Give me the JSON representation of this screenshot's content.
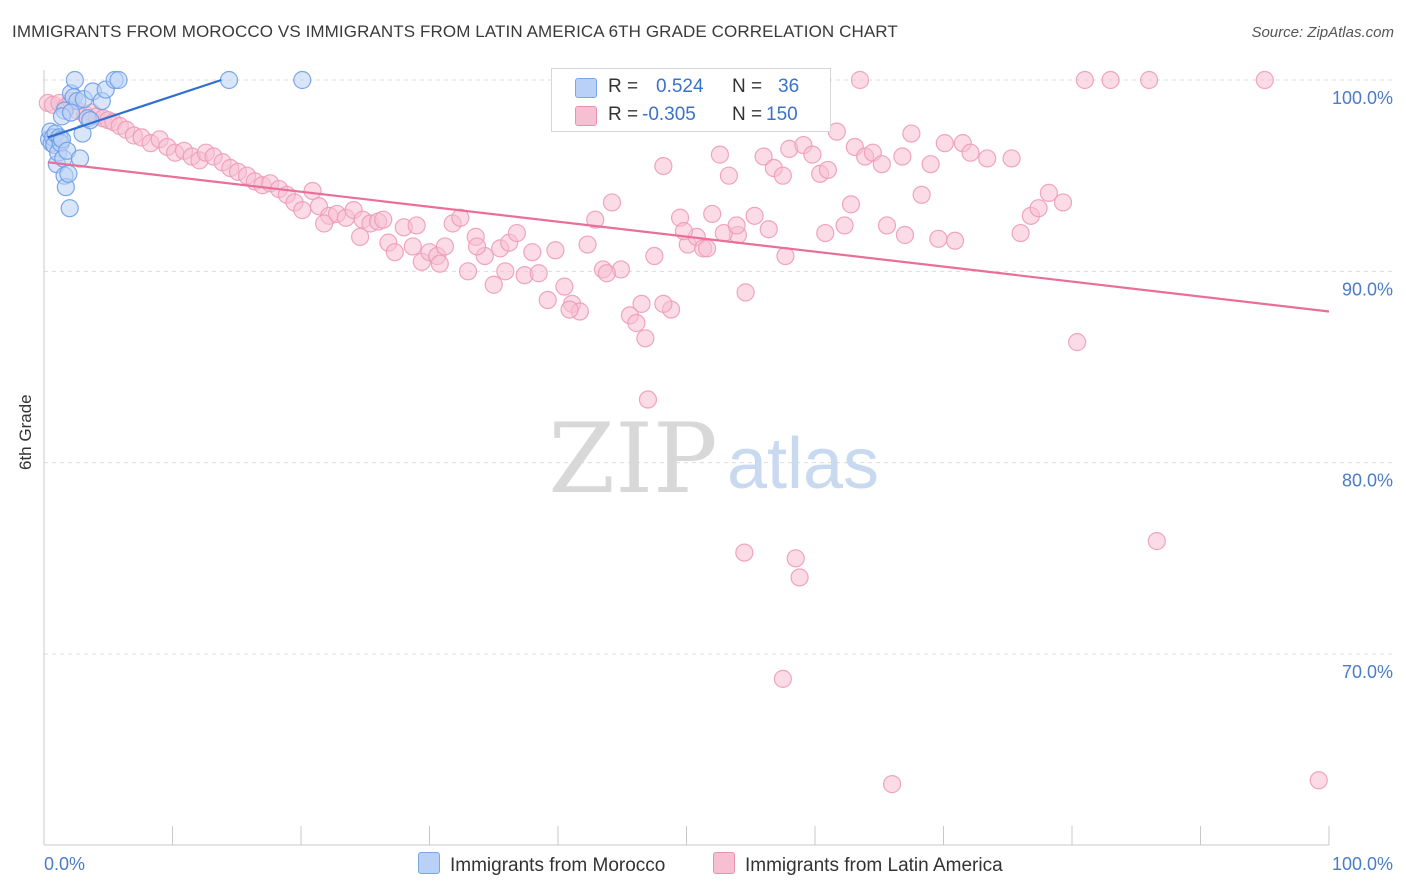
{
  "title": "IMMIGRANTS FROM MOROCCO VS IMMIGRANTS FROM LATIN AMERICA 6TH GRADE CORRELATION CHART",
  "source": "Source: ZipAtlas.com",
  "watermark": {
    "zip": "ZIP",
    "atlas": "atlas"
  },
  "legend": {
    "r_label": "R =",
    "n_label": "N =",
    "rows": [
      {
        "r": "0.524",
        "n": "36"
      },
      {
        "r": "-0.305",
        "n": "150"
      }
    ]
  },
  "chart_data": {
    "type": "scatter",
    "title": "IMMIGRANTS FROM MOROCCO VS IMMIGRANTS FROM LATIN AMERICA 6TH GRADE CORRELATION CHART",
    "xlabel": "",
    "ylabel": "6th Grade",
    "xlim": [
      0,
      100
    ],
    "ylim": [
      60.5,
      101.5
    ],
    "x_tick_labels": [
      "0.0%",
      "100.0%"
    ],
    "y_ticks": [
      70,
      80,
      90,
      100
    ],
    "y_tick_labels": [
      "70.0%",
      "80.0%",
      "90.0%",
      "100.0%"
    ],
    "grid": true,
    "colors": {
      "morocco": "#5b8fe0",
      "morocco_fill": "#b9d1f6",
      "latin": "#e96f9a",
      "latin_fill": "#f7c0d2",
      "tick_label": "#4a7cc7"
    },
    "series": [
      {
        "name": "Immigrants from Morocco",
        "R": 0.524,
        "N": 36,
        "trend": [
          [
            0.3,
            97.0
          ],
          [
            13.8,
            100.0
          ]
        ],
        "points": [
          [
            0.4,
            96.9
          ],
          [
            0.5,
            97.3
          ],
          [
            0.6,
            96.7
          ],
          [
            0.7,
            97.0
          ],
          [
            0.8,
            96.6
          ],
          [
            0.9,
            97.2
          ],
          [
            1.0,
            95.6
          ],
          [
            1.1,
            96.2
          ],
          [
            1.2,
            97.0
          ],
          [
            1.3,
            96.7
          ],
          [
            1.4,
            96.9
          ],
          [
            1.5,
            95.9
          ],
          [
            1.6,
            95.0
          ],
          [
            1.7,
            94.4
          ],
          [
            1.8,
            96.3
          ],
          [
            1.9,
            95.1
          ],
          [
            2.0,
            93.3
          ],
          [
            2.1,
            99.3
          ],
          [
            2.3,
            99.1
          ],
          [
            2.4,
            100.0
          ],
          [
            2.6,
            98.9
          ],
          [
            2.8,
            95.9
          ],
          [
            3.0,
            97.2
          ],
          [
            3.1,
            99.0
          ],
          [
            3.4,
            98.0
          ],
          [
            3.6,
            97.9
          ],
          [
            3.8,
            99.4
          ],
          [
            4.5,
            98.9
          ],
          [
            4.8,
            99.5
          ],
          [
            5.5,
            100.0
          ],
          [
            5.8,
            100.0
          ],
          [
            14.4,
            100.0
          ],
          [
            20.1,
            100.0
          ],
          [
            1.6,
            98.4
          ],
          [
            1.4,
            98.1
          ],
          [
            2.1,
            98.3
          ]
        ]
      },
      {
        "name": "Immigrants from Latin America",
        "R": -0.305,
        "N": 150,
        "trend": [
          [
            0.3,
            95.7
          ],
          [
            100.0,
            87.9
          ]
        ],
        "points": [
          [
            0.3,
            98.8
          ],
          [
            0.7,
            98.7
          ],
          [
            1.2,
            98.8
          ],
          [
            1.7,
            98.6
          ],
          [
            2.1,
            98.9
          ],
          [
            2.6,
            98.4
          ],
          [
            3.2,
            98.2
          ],
          [
            3.7,
            98.3
          ],
          [
            4.1,
            98.1
          ],
          [
            4.6,
            98.0
          ],
          [
            5.0,
            97.9
          ],
          [
            5.4,
            97.8
          ],
          [
            5.9,
            97.6
          ],
          [
            6.4,
            97.4
          ],
          [
            7.0,
            97.1
          ],
          [
            7.6,
            97.0
          ],
          [
            8.3,
            96.7
          ],
          [
            9.0,
            96.9
          ],
          [
            9.6,
            96.5
          ],
          [
            10.2,
            96.2
          ],
          [
            10.9,
            96.3
          ],
          [
            11.5,
            96.0
          ],
          [
            12.1,
            95.8
          ],
          [
            12.6,
            96.2
          ],
          [
            13.2,
            96.0
          ],
          [
            13.9,
            95.7
          ],
          [
            14.5,
            95.4
          ],
          [
            15.1,
            95.2
          ],
          [
            15.8,
            95.0
          ],
          [
            16.4,
            94.7
          ],
          [
            17.0,
            94.5
          ],
          [
            17.6,
            94.6
          ],
          [
            18.3,
            94.3
          ],
          [
            18.9,
            94.0
          ],
          [
            19.5,
            93.6
          ],
          [
            20.1,
            93.2
          ],
          [
            20.9,
            94.2
          ],
          [
            21.4,
            93.4
          ],
          [
            22.2,
            92.9
          ],
          [
            22.8,
            93.0
          ],
          [
            23.5,
            92.8
          ],
          [
            24.1,
            93.2
          ],
          [
            24.8,
            92.7
          ],
          [
            25.4,
            92.5
          ],
          [
            26.0,
            92.6
          ],
          [
            26.8,
            91.5
          ],
          [
            27.3,
            91.0
          ],
          [
            28.0,
            92.3
          ],
          [
            28.7,
            91.3
          ],
          [
            29.4,
            90.5
          ],
          [
            30.0,
            91.0
          ],
          [
            30.6,
            90.8
          ],
          [
            31.2,
            91.3
          ],
          [
            31.8,
            92.5
          ],
          [
            32.4,
            92.8
          ],
          [
            33.0,
            90.0
          ],
          [
            33.6,
            91.8
          ],
          [
            34.3,
            90.8
          ],
          [
            35.0,
            89.3
          ],
          [
            35.5,
            91.2
          ],
          [
            36.2,
            91.5
          ],
          [
            36.8,
            92.0
          ],
          [
            37.4,
            89.8
          ],
          [
            38.0,
            91.0
          ],
          [
            38.5,
            89.9
          ],
          [
            39.2,
            88.5
          ],
          [
            39.8,
            91.1
          ],
          [
            40.5,
            89.2
          ],
          [
            41.1,
            88.3
          ],
          [
            41.7,
            87.9
          ],
          [
            42.3,
            91.4
          ],
          [
            42.9,
            92.7
          ],
          [
            43.5,
            90.1
          ],
          [
            44.2,
            93.6
          ],
          [
            44.9,
            90.1
          ],
          [
            45.6,
            87.7
          ],
          [
            46.1,
            87.3
          ],
          [
            46.8,
            86.5
          ],
          [
            47.5,
            90.8
          ],
          [
            48.2,
            95.5
          ],
          [
            48.8,
            88.0
          ],
          [
            49.5,
            92.8
          ],
          [
            50.1,
            91.4
          ],
          [
            50.8,
            91.8
          ],
          [
            51.3,
            91.2
          ],
          [
            52.0,
            93.0
          ],
          [
            52.6,
            96.1
          ],
          [
            53.3,
            95.0
          ],
          [
            54.0,
            91.9
          ],
          [
            54.6,
            88.9
          ],
          [
            55.3,
            92.9
          ],
          [
            56.0,
            96.0
          ],
          [
            56.8,
            95.4
          ],
          [
            57.5,
            95.0
          ],
          [
            58.0,
            96.4
          ],
          [
            59.1,
            96.6
          ],
          [
            59.8,
            96.1
          ],
          [
            60.4,
            95.1
          ],
          [
            61.0,
            95.3
          ],
          [
            61.7,
            97.3
          ],
          [
            62.3,
            92.4
          ],
          [
            63.1,
            96.5
          ],
          [
            63.9,
            96.0
          ],
          [
            64.5,
            96.2
          ],
          [
            65.2,
            95.6
          ],
          [
            66.8,
            96.0
          ],
          [
            67.5,
            97.2
          ],
          [
            68.3,
            94.0
          ],
          [
            69.0,
            95.6
          ],
          [
            69.6,
            91.7
          ],
          [
            70.1,
            96.7
          ],
          [
            71.5,
            96.7
          ],
          [
            72.1,
            96.2
          ],
          [
            73.4,
            95.9
          ],
          [
            75.3,
            95.9
          ],
          [
            76.0,
            92.0
          ],
          [
            76.8,
            92.9
          ],
          [
            77.4,
            93.3
          ],
          [
            78.2,
            94.1
          ],
          [
            79.3,
            93.6
          ],
          [
            80.4,
            86.3
          ],
          [
            81.0,
            100.0
          ],
          [
            83.0,
            100.0
          ],
          [
            86.0,
            100.0
          ],
          [
            95.0,
            100.0
          ],
          [
            63.5,
            100.0
          ],
          [
            47.0,
            83.3
          ],
          [
            54.5,
            75.3
          ],
          [
            58.5,
            75.0
          ],
          [
            58.8,
            74.0
          ],
          [
            86.6,
            75.9
          ],
          [
            57.5,
            68.7
          ],
          [
            66.0,
            63.2
          ],
          [
            99.2,
            63.4
          ],
          [
            48.2,
            88.3
          ],
          [
            21.8,
            92.5
          ],
          [
            24.6,
            91.8
          ],
          [
            26.4,
            92.7
          ],
          [
            29.0,
            92.4
          ],
          [
            30.8,
            90.4
          ],
          [
            33.7,
            91.3
          ],
          [
            35.9,
            90.0
          ],
          [
            40.9,
            88.0
          ],
          [
            43.8,
            89.9
          ],
          [
            46.5,
            88.3
          ],
          [
            49.8,
            92.1
          ],
          [
            51.6,
            91.2
          ],
          [
            52.9,
            92.0
          ],
          [
            53.9,
            92.4
          ],
          [
            56.4,
            92.2
          ],
          [
            57.7,
            90.8
          ],
          [
            60.8,
            92.0
          ],
          [
            62.8,
            93.5
          ],
          [
            65.6,
            92.4
          ],
          [
            67.0,
            91.9
          ],
          [
            70.9,
            91.6
          ]
        ]
      }
    ]
  },
  "bottom_legend": [
    "Immigrants from Morocco",
    "Immigrants from Latin America"
  ]
}
